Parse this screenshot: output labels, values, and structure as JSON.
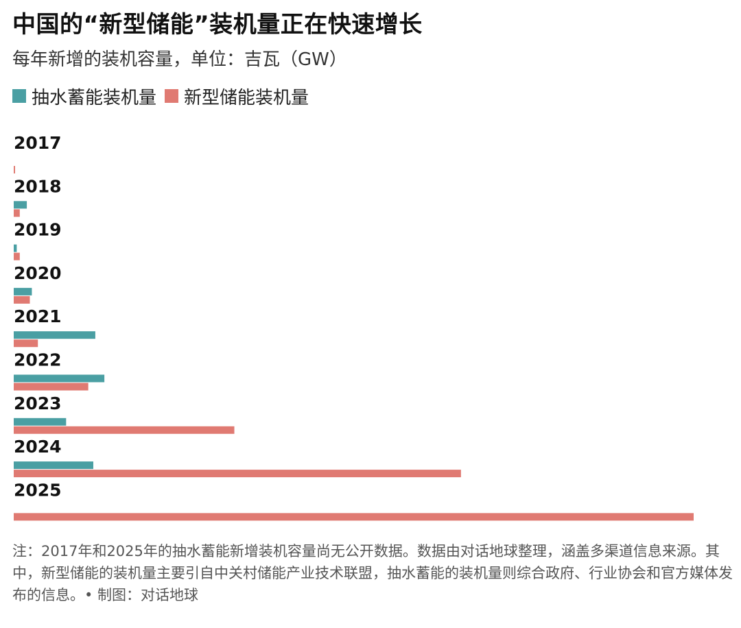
{
  "title": "中国的“新型储能”装机量正在快速增长",
  "subtitle": "每年新增的装机容量，单位：吉瓦（GW）",
  "footnote": "注：2017年和2025年的抽水蓄能新增装机容量尚无公开数据。数据由对话地球整理，涵盖多渠道信息来源。其中，新型储能的装机量主要引自中关村储能产业技术联盟，抽水蓄能的装机量则综合政府、行业协会和官方媒体发布的信息。• 制图：对话地球",
  "colors": {
    "pumped_hydro": "#4a9fa3",
    "new_storage": "#e07a72"
  },
  "chart_data": {
    "type": "bar",
    "orientation": "horizontal",
    "title": "中国的“新型储能”装机量正在快速增长",
    "subtitle": "每年新增的装机容量，单位：吉瓦（GW）",
    "xlabel": "",
    "ylabel": "",
    "xlim": [
      0,
      67.5
    ],
    "grid": false,
    "legend_position": "top-left",
    "categories": [
      "2017",
      "2018",
      "2019",
      "2020",
      "2021",
      "2022",
      "2023",
      "2024",
      "2025"
    ],
    "series": [
      {
        "name": "抽水蓄能装机量",
        "color": "#4a9fa3",
        "values": [
          null,
          1.3,
          0.3,
          1.8,
          8.1,
          9.0,
          5.2,
          7.9,
          null
        ]
      },
      {
        "name": "新型储能装机量",
        "color": "#e07a72",
        "values": [
          0.1,
          0.6,
          0.6,
          1.6,
          2.4,
          7.4,
          21.9,
          44.4,
          67.5
        ]
      }
    ]
  }
}
